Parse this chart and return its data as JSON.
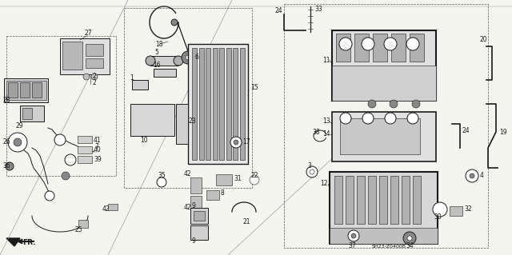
{
  "background_color": "#f5f5f0",
  "stamp": "SH23-Z0400B",
  "fr_label": "FR.",
  "fig_width": 6.4,
  "fig_height": 3.19,
  "dpi": 100,
  "lc": "#1a1a1a",
  "lw_thick": 1.2,
  "lw_mid": 0.7,
  "lw_thin": 0.4,
  "fs_label": 5.5,
  "fs_stamp": 4.5
}
